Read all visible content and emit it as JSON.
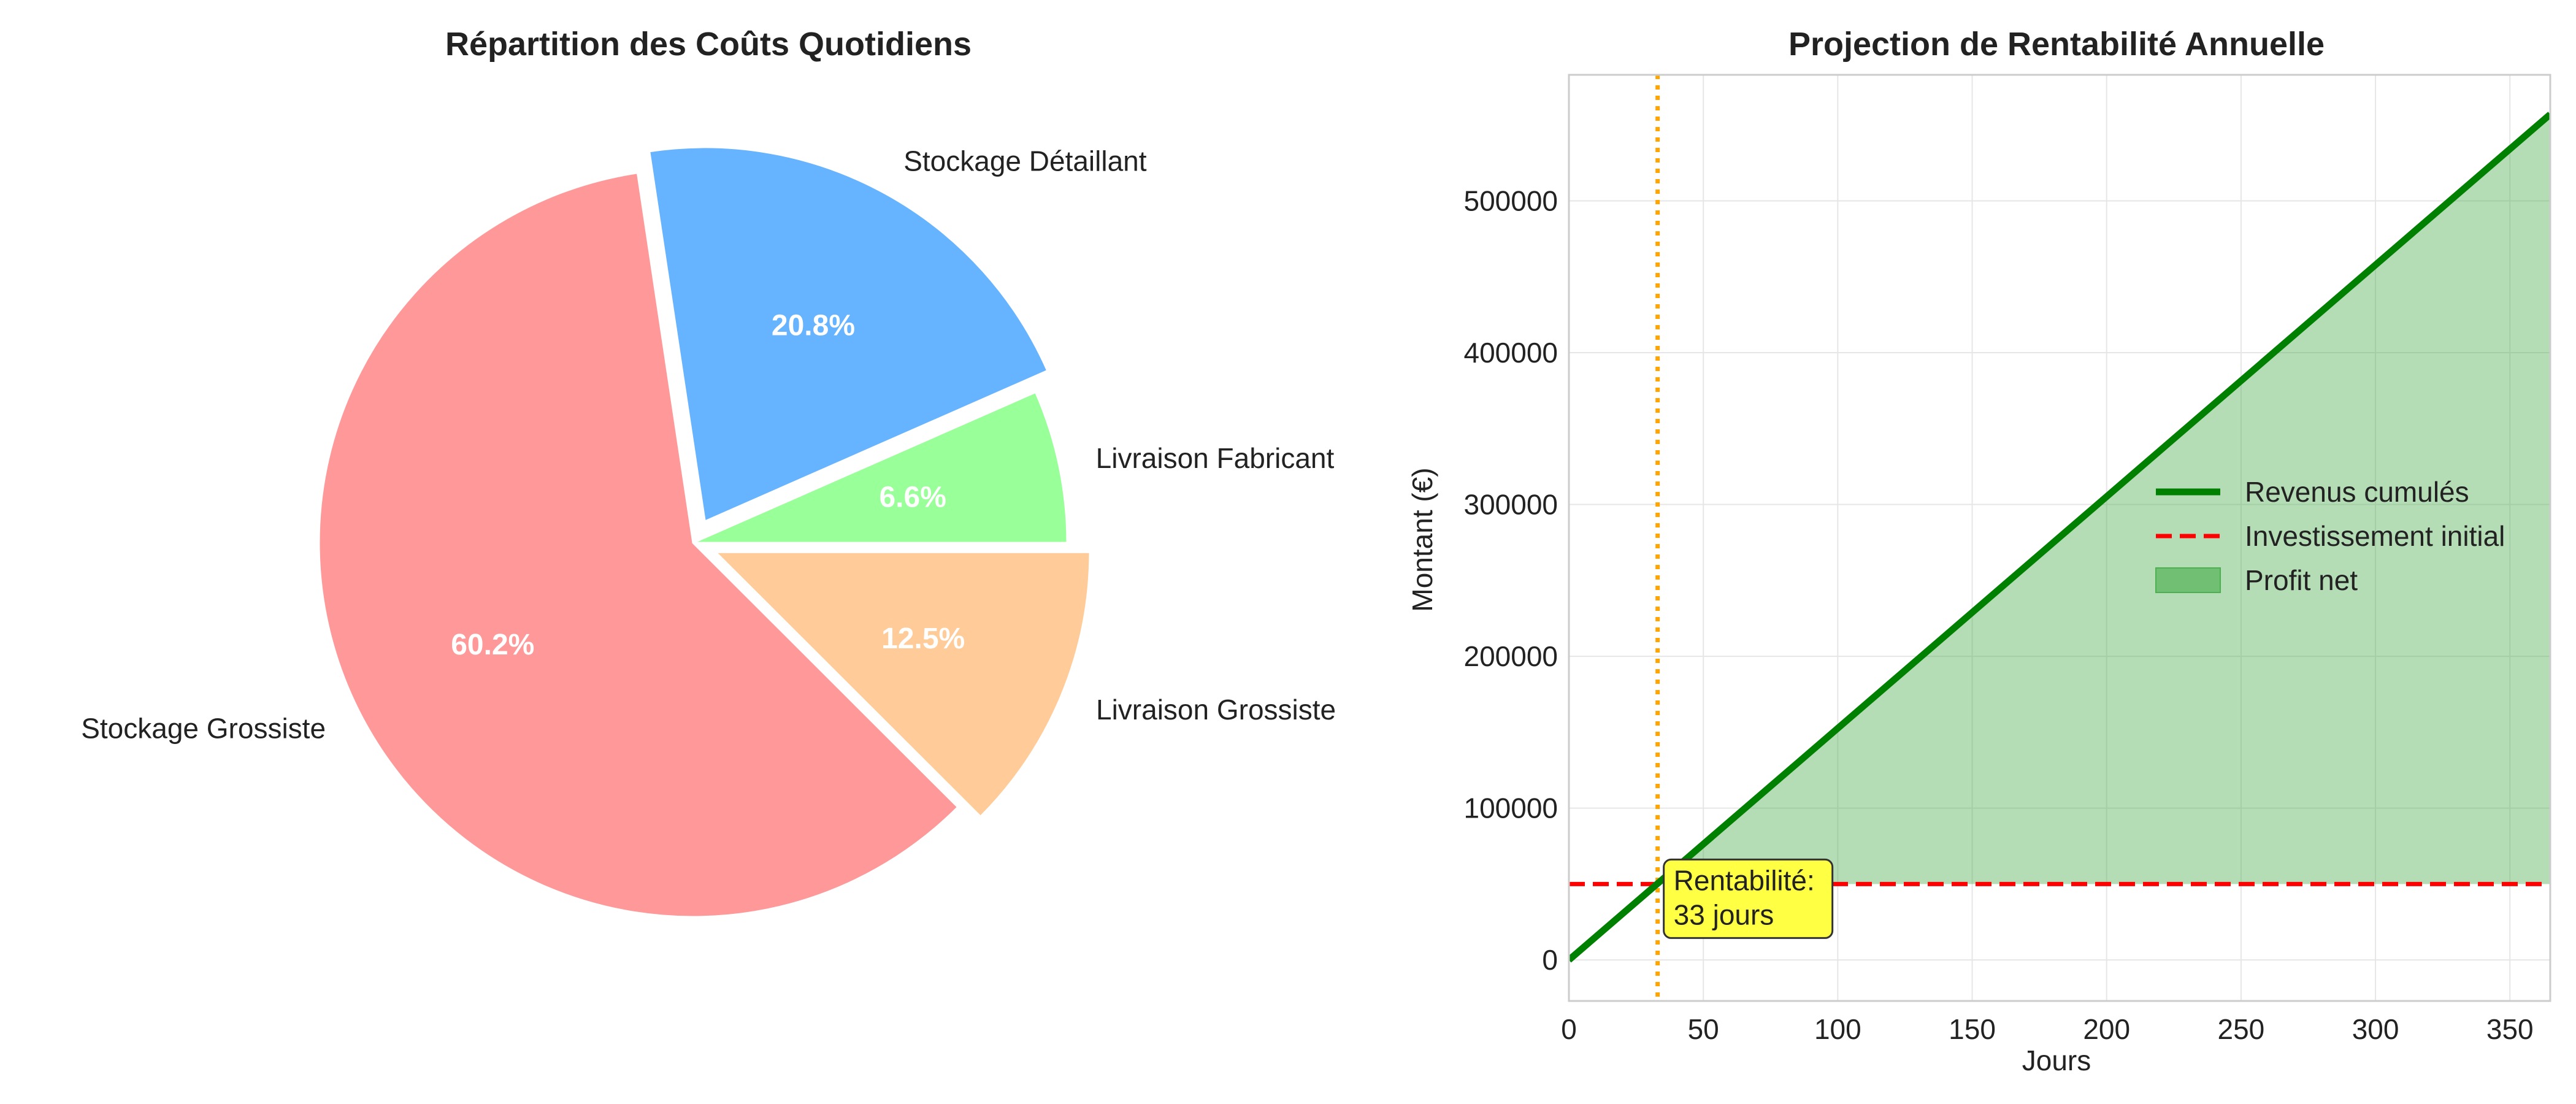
{
  "chart_data": [
    {
      "type": "pie",
      "title": "Répartition des Coûts Quotidiens",
      "slices": [
        {
          "label": "Livraison Fabricant",
          "value": 6.6,
          "pct_label": "6.6%",
          "color": "#99ff99",
          "exploded": false
        },
        {
          "label": "Stockage Détaillant",
          "value": 20.8,
          "pct_label": "20.8%",
          "color": "#66b3ff",
          "exploded": true
        },
        {
          "label": "Stockage Grossiste",
          "value": 60.2,
          "pct_label": "60.2%",
          "color": "#ff9999",
          "exploded": false
        },
        {
          "label": "Livraison Grossiste",
          "value": 12.5,
          "pct_label": "12.5%",
          "color": "#ffcc99",
          "exploded": true
        }
      ]
    },
    {
      "type": "line",
      "title": "Projection de Rentabilité Annuelle",
      "xlabel": "Jours",
      "ylabel": "Montant (€)",
      "xlim": [
        0,
        365
      ],
      "ylim": [
        -27000,
        583000
      ],
      "xticks": [
        0,
        50,
        100,
        150,
        200,
        250,
        300,
        350
      ],
      "yticks": [
        0,
        100000,
        200000,
        300000,
        400000,
        500000
      ],
      "grid": true,
      "legend_position": "center-right",
      "series": [
        {
          "name": "Revenus cumulés",
          "kind": "line",
          "color": "#008000",
          "x": [
            0,
            365
          ],
          "y": [
            0,
            557000
          ]
        },
        {
          "name": "Investissement initial",
          "kind": "hline",
          "color": "#ff0000",
          "y": 50000
        },
        {
          "name": "Profit net",
          "kind": "fill",
          "color": "#4caf50",
          "opacity": 0.42
        }
      ],
      "breakeven": {
        "x": 33,
        "color": "#ffa500"
      },
      "annotation": {
        "lines": [
          "Rentabilité:",
          "33 jours"
        ],
        "x": 33,
        "y": 50000,
        "box_color": "#ffff44"
      }
    }
  ]
}
